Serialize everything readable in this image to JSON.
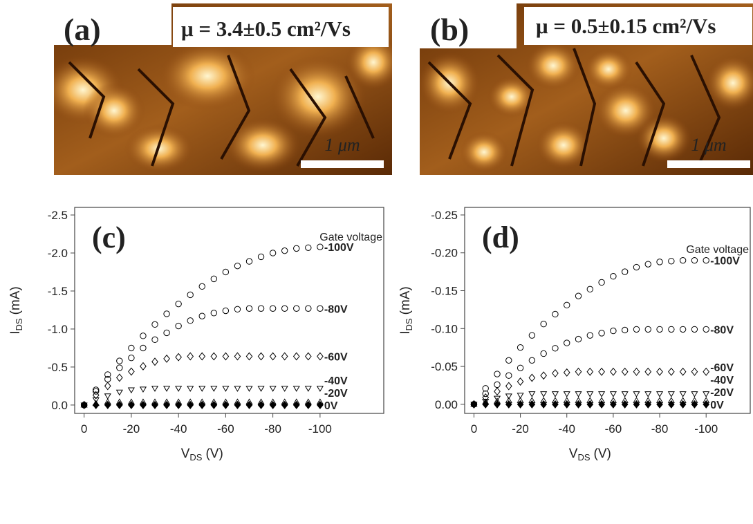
{
  "images": [
    {
      "panel_label": "(a)",
      "mobility": "μ = 3.4±0.5 cm²/Vs",
      "scale_label": "1 μm"
    },
    {
      "panel_label": "(b)",
      "mobility": "μ = 0.5±0.15 cm²/Vs",
      "scale_label": "1 μm"
    }
  ],
  "chart_data": [
    {
      "type": "scatter",
      "panel_label": "(c)",
      "annotation": "Gate voltage",
      "x_label": "V",
      "x_label_sub": "DS",
      "x_label_unit": "(V)",
      "y_label": "I",
      "y_label_sub": "DS",
      "y_label_unit": "(mA)",
      "xlim": [
        4,
        -127
      ],
      "ylim": [
        0.11,
        -2.6
      ],
      "xticks": [
        0,
        -20,
        -40,
        -60,
        -80,
        -100
      ],
      "yticks": [
        {
          "value": 0,
          "label": "0.0"
        },
        -0.5,
        {
          "value": -1,
          "label": "-1.0"
        },
        -1.5,
        {
          "value": -2,
          "label": "-2.0"
        },
        -2.5
      ],
      "x": [
        0,
        -5,
        -10,
        -15,
        -20,
        -25,
        -30,
        -35,
        -40,
        -45,
        -50,
        -55,
        -60,
        -65,
        -70,
        -75,
        -80,
        -85,
        -90,
        -95,
        -100
      ],
      "series": [
        {
          "name": "-100V",
          "color": "#000000",
          "marker": "circle",
          "filled": false,
          "values": [
            0,
            -0.2,
            -0.4,
            -0.58,
            -0.75,
            -0.91,
            -1.06,
            -1.2,
            -1.33,
            -1.45,
            -1.56,
            -1.66,
            -1.75,
            -1.83,
            -1.89,
            -1.95,
            -2.0,
            -2.03,
            -2.06,
            -2.07,
            -2.08
          ]
        },
        {
          "name": "-80V",
          "color": "#000000",
          "marker": "circle",
          "filled": false,
          "values": [
            0,
            -0.18,
            -0.34,
            -0.49,
            -0.62,
            -0.75,
            -0.86,
            -0.95,
            -1.04,
            -1.11,
            -1.17,
            -1.21,
            -1.24,
            -1.26,
            -1.27,
            -1.27,
            -1.27,
            -1.27,
            -1.27,
            -1.27,
            -1.27
          ]
        },
        {
          "name": "-60V",
          "color": "#000000",
          "marker": "diamond",
          "filled": false,
          "values": [
            0,
            -0.13,
            -0.25,
            -0.36,
            -0.44,
            -0.51,
            -0.57,
            -0.61,
            -0.63,
            -0.64,
            -0.64,
            -0.64,
            -0.64,
            -0.64,
            -0.64,
            -0.64,
            -0.64,
            -0.64,
            -0.64,
            -0.64,
            -0.64
          ]
        },
        {
          "name": "-40V",
          "color": "#000000",
          "marker": "triangle-down",
          "filled": false,
          "values": [
            0,
            -0.07,
            -0.12,
            -0.17,
            -0.2,
            -0.21,
            -0.22,
            -0.22,
            -0.22,
            -0.22,
            -0.22,
            -0.22,
            -0.22,
            -0.22,
            -0.22,
            -0.22,
            -0.22,
            -0.22,
            -0.22,
            -0.22,
            -0.22
          ]
        },
        {
          "name": "-20V",
          "color": "#000000",
          "marker": "triangle-up",
          "filled": false,
          "values": [
            0,
            -0.02,
            -0.04,
            -0.04,
            -0.04,
            -0.04,
            -0.04,
            -0.04,
            -0.04,
            -0.04,
            -0.04,
            -0.04,
            -0.04,
            -0.04,
            -0.04,
            -0.04,
            -0.04,
            -0.04,
            -0.04,
            -0.04,
            -0.04
          ]
        },
        {
          "name": "0V",
          "color": "#000000",
          "marker": "diamond",
          "filled": true,
          "values": [
            0,
            0,
            0,
            0,
            0,
            0,
            0,
            0,
            0,
            0,
            0,
            0,
            0,
            0,
            0,
            0,
            0,
            0,
            0,
            0,
            0
          ]
        }
      ]
    },
    {
      "type": "scatter",
      "panel_label": "(d)",
      "annotation": "Gate voltage",
      "x_label": "V",
      "x_label_sub": "DS",
      "x_label_unit": "(V)",
      "y_label": "I",
      "y_label_sub": "DS",
      "y_label_unit": "(mA)",
      "xlim": [
        4,
        -119
      ],
      "ylim": [
        0.012,
        -0.26
      ],
      "xticks": [
        0,
        -20,
        -40,
        -60,
        -80,
        -100
      ],
      "yticks": [
        {
          "value": 0,
          "label": "0.00"
        },
        -0.05,
        {
          "value": -0.1,
          "label": "-0.10"
        },
        -0.15,
        {
          "value": -0.2,
          "label": "-0.20"
        },
        -0.25
      ],
      "x": [
        0,
        -5,
        -10,
        -15,
        -20,
        -25,
        -30,
        -35,
        -40,
        -45,
        -50,
        -55,
        -60,
        -65,
        -70,
        -75,
        -80,
        -85,
        -90,
        -95,
        -100
      ],
      "series": [
        {
          "name": "-100V",
          "color": "#000000",
          "marker": "circle",
          "filled": false,
          "values": [
            0,
            -0.021,
            -0.04,
            -0.058,
            -0.075,
            -0.091,
            -0.106,
            -0.119,
            -0.131,
            -0.143,
            -0.152,
            -0.161,
            -0.169,
            -0.175,
            -0.181,
            -0.185,
            -0.188,
            -0.189,
            -0.19,
            -0.19,
            -0.19
          ]
        },
        {
          "name": "-80V",
          "color": "#000000",
          "marker": "circle",
          "filled": false,
          "values": [
            0,
            -0.014,
            -0.026,
            -0.038,
            -0.048,
            -0.058,
            -0.067,
            -0.074,
            -0.081,
            -0.086,
            -0.091,
            -0.094,
            -0.097,
            -0.098,
            -0.099,
            -0.099,
            -0.099,
            -0.099,
            -0.099,
            -0.099,
            -0.099
          ]
        },
        {
          "name": "-60V",
          "color": "#000000",
          "marker": "diamond",
          "filled": false,
          "values": [
            0,
            -0.009,
            -0.017,
            -0.024,
            -0.03,
            -0.035,
            -0.038,
            -0.041,
            -0.042,
            -0.043,
            -0.043,
            -0.043,
            -0.043,
            -0.043,
            -0.043,
            -0.043,
            -0.043,
            -0.043,
            -0.043,
            -0.043,
            -0.043
          ]
        },
        {
          "name": "-40V",
          "color": "#000000",
          "marker": "triangle-down",
          "filled": false,
          "values": [
            0,
            -0.004,
            -0.008,
            -0.011,
            -0.012,
            -0.014,
            -0.014,
            -0.014,
            -0.014,
            -0.014,
            -0.014,
            -0.014,
            -0.014,
            -0.014,
            -0.014,
            -0.014,
            -0.014,
            -0.014,
            -0.014,
            -0.014,
            -0.014
          ]
        },
        {
          "name": "-20V",
          "color": "#000000",
          "marker": "triangle-up",
          "filled": false,
          "values": [
            0,
            -0.003,
            -0.004,
            -0.005,
            -0.005,
            -0.005,
            -0.005,
            -0.005,
            -0.005,
            -0.005,
            -0.005,
            -0.005,
            -0.005,
            -0.005,
            -0.005,
            -0.005,
            -0.005,
            -0.005,
            -0.005,
            -0.005,
            -0.005
          ]
        },
        {
          "name": "0V",
          "color": "#000000",
          "marker": "diamond",
          "filled": true,
          "values": [
            0,
            0,
            0,
            0,
            0,
            0,
            0,
            0,
            0,
            0,
            0,
            0,
            0,
            0,
            0,
            0,
            0,
            0,
            0,
            0,
            0
          ]
        }
      ]
    }
  ]
}
